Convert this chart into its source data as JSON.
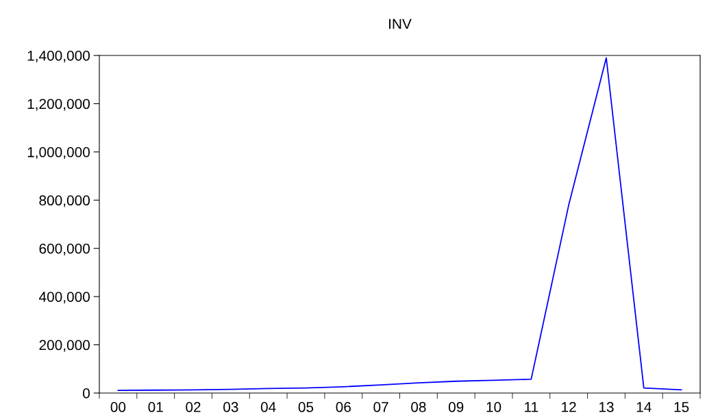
{
  "chart_data": {
    "type": "line",
    "title": "INV",
    "categories": [
      "00",
      "01",
      "02",
      "03",
      "04",
      "05",
      "06",
      "07",
      "08",
      "09",
      "10",
      "11",
      "12",
      "13",
      "14",
      "15"
    ],
    "series": [
      {
        "color": "#0000ff",
        "values": [
          11000,
          12000,
          13000,
          15000,
          19000,
          21000,
          26000,
          34000,
          42000,
          49000,
          53000,
          57000,
          780000,
          1390000,
          21000,
          13000
        ]
      }
    ],
    "ylim": [
      0,
      1400000
    ],
    "yticks": [
      {
        "value": 0,
        "label": "0"
      },
      {
        "value": 200000,
        "label": "200,000"
      },
      {
        "value": 400000,
        "label": "400,000"
      },
      {
        "value": 600000,
        "label": "600,000"
      },
      {
        "value": 800000,
        "label": "800,000"
      },
      {
        "value": 1000000,
        "label": "1,000,000"
      },
      {
        "value": 1200000,
        "label": "1,200,000"
      },
      {
        "value": 1400000,
        "label": "1,400,000"
      }
    ],
    "grid": false,
    "marker": "none",
    "line_style": "solid"
  }
}
